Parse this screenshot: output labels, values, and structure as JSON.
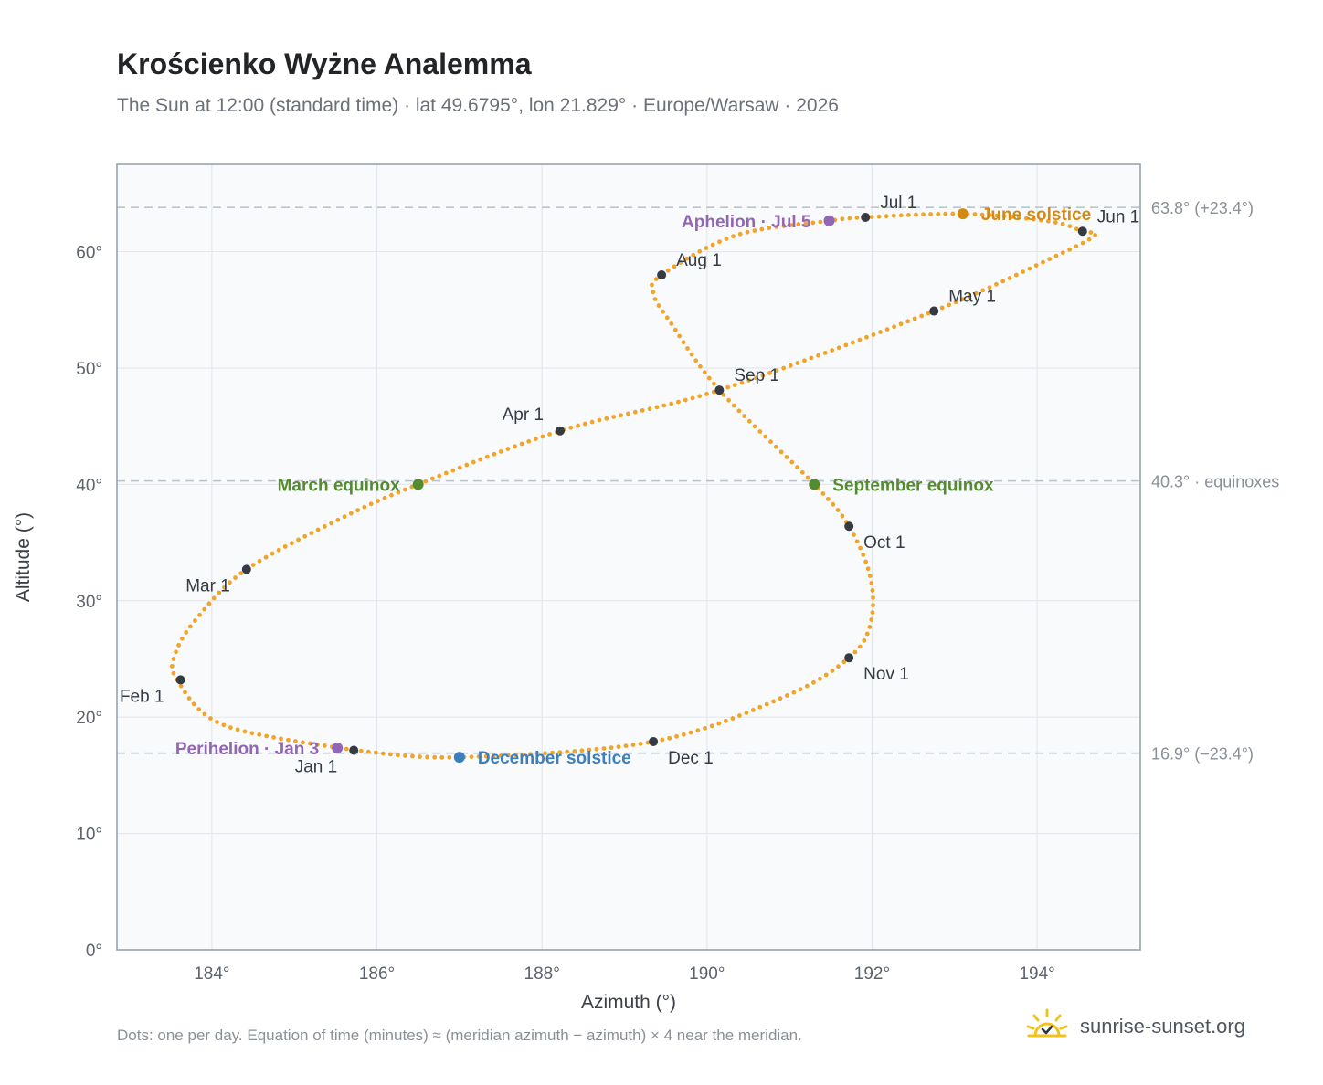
{
  "title": "Krościenko Wyżne Analemma",
  "subtitle": "The Sun at 12:00 (standard time) · lat 49.6795°, lon 21.829° · Europe/Warsaw · 2026",
  "footnote": "Dots: one per day. Equation of time (minutes) ≈ (meridian azimuth − azimuth) × 4 near the meridian.",
  "brand": {
    "name": "sunrise-sunset.org",
    "icon": "sun-logo-icon"
  },
  "colors": {
    "curve": "#f2a428",
    "month_marker": "#353b43",
    "solstice_june": "#d48a10",
    "solstice_december": "#3b7fbf",
    "equinox": "#558b2f",
    "apsis": "#9266b3",
    "plot_bg": "#f8fafc",
    "grid": "#e4e8ee",
    "frame": "#98a2b0",
    "ref_line": "#bcc4cf"
  },
  "chart_data": {
    "type": "scatter",
    "xlabel": "Azimuth (°)",
    "ylabel": "Altitude (°)",
    "xlim": [
      182.85,
      195.25
    ],
    "ylim": [
      0,
      67.5
    ],
    "xticks": [
      184,
      186,
      188,
      190,
      192,
      194
    ],
    "xtick_labels": [
      "184°",
      "186°",
      "188°",
      "190°",
      "192°",
      "194°"
    ],
    "yticks": [
      0,
      10,
      20,
      30,
      40,
      50,
      60
    ],
    "ytick_labels": [
      "0°",
      "10°",
      "20°",
      "30°",
      "40°",
      "50°",
      "60°"
    ],
    "grid": true,
    "reference_lines": [
      {
        "y": 63.8,
        "label": "63.8° (+23.4°)"
      },
      {
        "y": 40.3,
        "label": "40.3° · equinoxes"
      },
      {
        "y": 16.9,
        "label": "16.9° (−23.4°)"
      }
    ],
    "analemma_path": [
      [
        185.72,
        17.15
      ],
      [
        184.15,
        19.3
      ],
      [
        183.58,
        23.2
      ],
      [
        183.56,
        25.5
      ],
      [
        183.82,
        28.5
      ],
      [
        184.42,
        32.7
      ],
      [
        185.6,
        37.2
      ],
      [
        186.5,
        40.0
      ],
      [
        188.22,
        44.6
      ],
      [
        190.15,
        48.1
      ],
      [
        192.75,
        54.9
      ],
      [
        194.22,
        59.6
      ],
      [
        194.7,
        61.4
      ],
      [
        194.55,
        61.75
      ],
      [
        194.15,
        62.6
      ],
      [
        193.1,
        63.25
      ],
      [
        191.92,
        62.95
      ],
      [
        191.48,
        62.65
      ],
      [
        190.35,
        61.4
      ],
      [
        189.45,
        58.0
      ],
      [
        189.35,
        56.4
      ],
      [
        189.55,
        54.0
      ],
      [
        190.15,
        48.1
      ],
      [
        191.3,
        40.0
      ],
      [
        191.72,
        36.4
      ],
      [
        191.98,
        32.0
      ],
      [
        191.98,
        28.0
      ],
      [
        191.72,
        25.1
      ],
      [
        190.95,
        21.8
      ],
      [
        189.35,
        17.9
      ],
      [
        187.0,
        16.55
      ],
      [
        185.72,
        17.15
      ]
    ],
    "month_markers": [
      {
        "label": "Jan 1",
        "x": 185.72,
        "y": 17.15,
        "pos": "below-left"
      },
      {
        "label": "Feb 1",
        "x": 183.62,
        "y": 23.2,
        "pos": "below-left"
      },
      {
        "label": "Mar 1",
        "x": 184.42,
        "y": 32.7,
        "pos": "below-left"
      },
      {
        "label": "Apr 1",
        "x": 188.22,
        "y": 44.6,
        "pos": "above-left"
      },
      {
        "label": "May 1",
        "x": 192.75,
        "y": 54.9,
        "pos": "above-right"
      },
      {
        "label": "Jun 1",
        "x": 194.55,
        "y": 61.75,
        "pos": "above-right"
      },
      {
        "label": "Jul 1",
        "x": 191.92,
        "y": 62.95,
        "pos": "above-right"
      },
      {
        "label": "Aug 1",
        "x": 189.45,
        "y": 58.0,
        "pos": "above-right"
      },
      {
        "label": "Sep 1",
        "x": 190.15,
        "y": 48.1,
        "pos": "above-right"
      },
      {
        "label": "Oct 1",
        "x": 191.72,
        "y": 36.4,
        "pos": "below-right"
      },
      {
        "label": "Nov 1",
        "x": 191.72,
        "y": 25.1,
        "pos": "below-right"
      },
      {
        "label": "Dec 1",
        "x": 189.35,
        "y": 17.9,
        "pos": "below-right"
      }
    ],
    "events": [
      {
        "label": "June solstice",
        "x": 193.1,
        "y": 63.25,
        "color": "solstice_june",
        "pos": "right"
      },
      {
        "label": "Aphelion · Jul 5",
        "x": 191.48,
        "y": 62.65,
        "color": "apsis",
        "pos": "left"
      },
      {
        "label": "March equinox",
        "x": 186.5,
        "y": 40.0,
        "color": "equinox",
        "pos": "left"
      },
      {
        "label": "September equinox",
        "x": 191.3,
        "y": 40.0,
        "color": "equinox",
        "pos": "right"
      },
      {
        "label": "Perihelion · Jan 3",
        "x": 185.52,
        "y": 17.35,
        "color": "apsis",
        "pos": "left"
      },
      {
        "label": "December solstice",
        "x": 187.0,
        "y": 16.55,
        "color": "solstice_december",
        "pos": "right"
      }
    ]
  }
}
